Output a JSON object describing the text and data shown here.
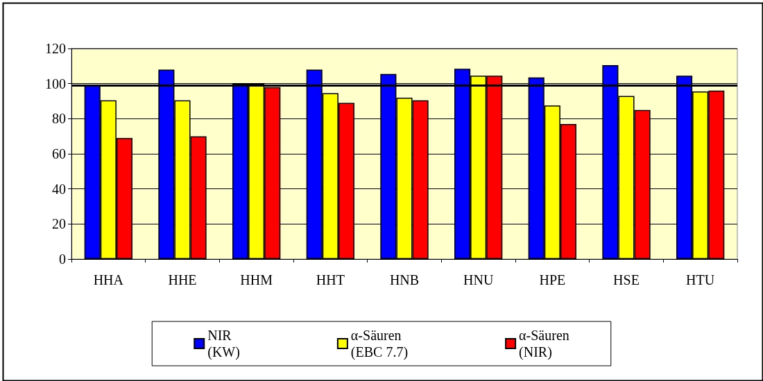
{
  "chart_data": {
    "type": "bar",
    "categories": [
      "HHA",
      "HHE",
      "HHM",
      "HHT",
      "HNB",
      "HNU",
      "HPE",
      "HSE",
      "HTU"
    ],
    "series": [
      {
        "name": "NIR\n(KW)",
        "color": "#0000ff",
        "values": [
          99,
          108,
          100,
          108,
          105.5,
          108.5,
          103.5,
          110.5,
          104.5
        ]
      },
      {
        "name": "α-Säuren\n(EBC 7.7)",
        "color": "#ffff00",
        "values": [
          90.5,
          90.5,
          100,
          94.5,
          92,
          104.5,
          87.5,
          93,
          95.5
        ]
      },
      {
        "name": "α-Säuren\n(NIR)",
        "color": "#ff0000",
        "values": [
          69,
          70,
          98,
          89,
          90.5,
          104.5,
          77,
          85,
          96
        ]
      }
    ],
    "ylim": [
      0,
      120
    ],
    "yticks": [
      0,
      20,
      40,
      60,
      80,
      100,
      120
    ],
    "ref_lines": [
      {
        "axis": "y",
        "value": 99,
        "color": "#000000"
      }
    ],
    "grid": "y",
    "legend": "bottom"
  }
}
